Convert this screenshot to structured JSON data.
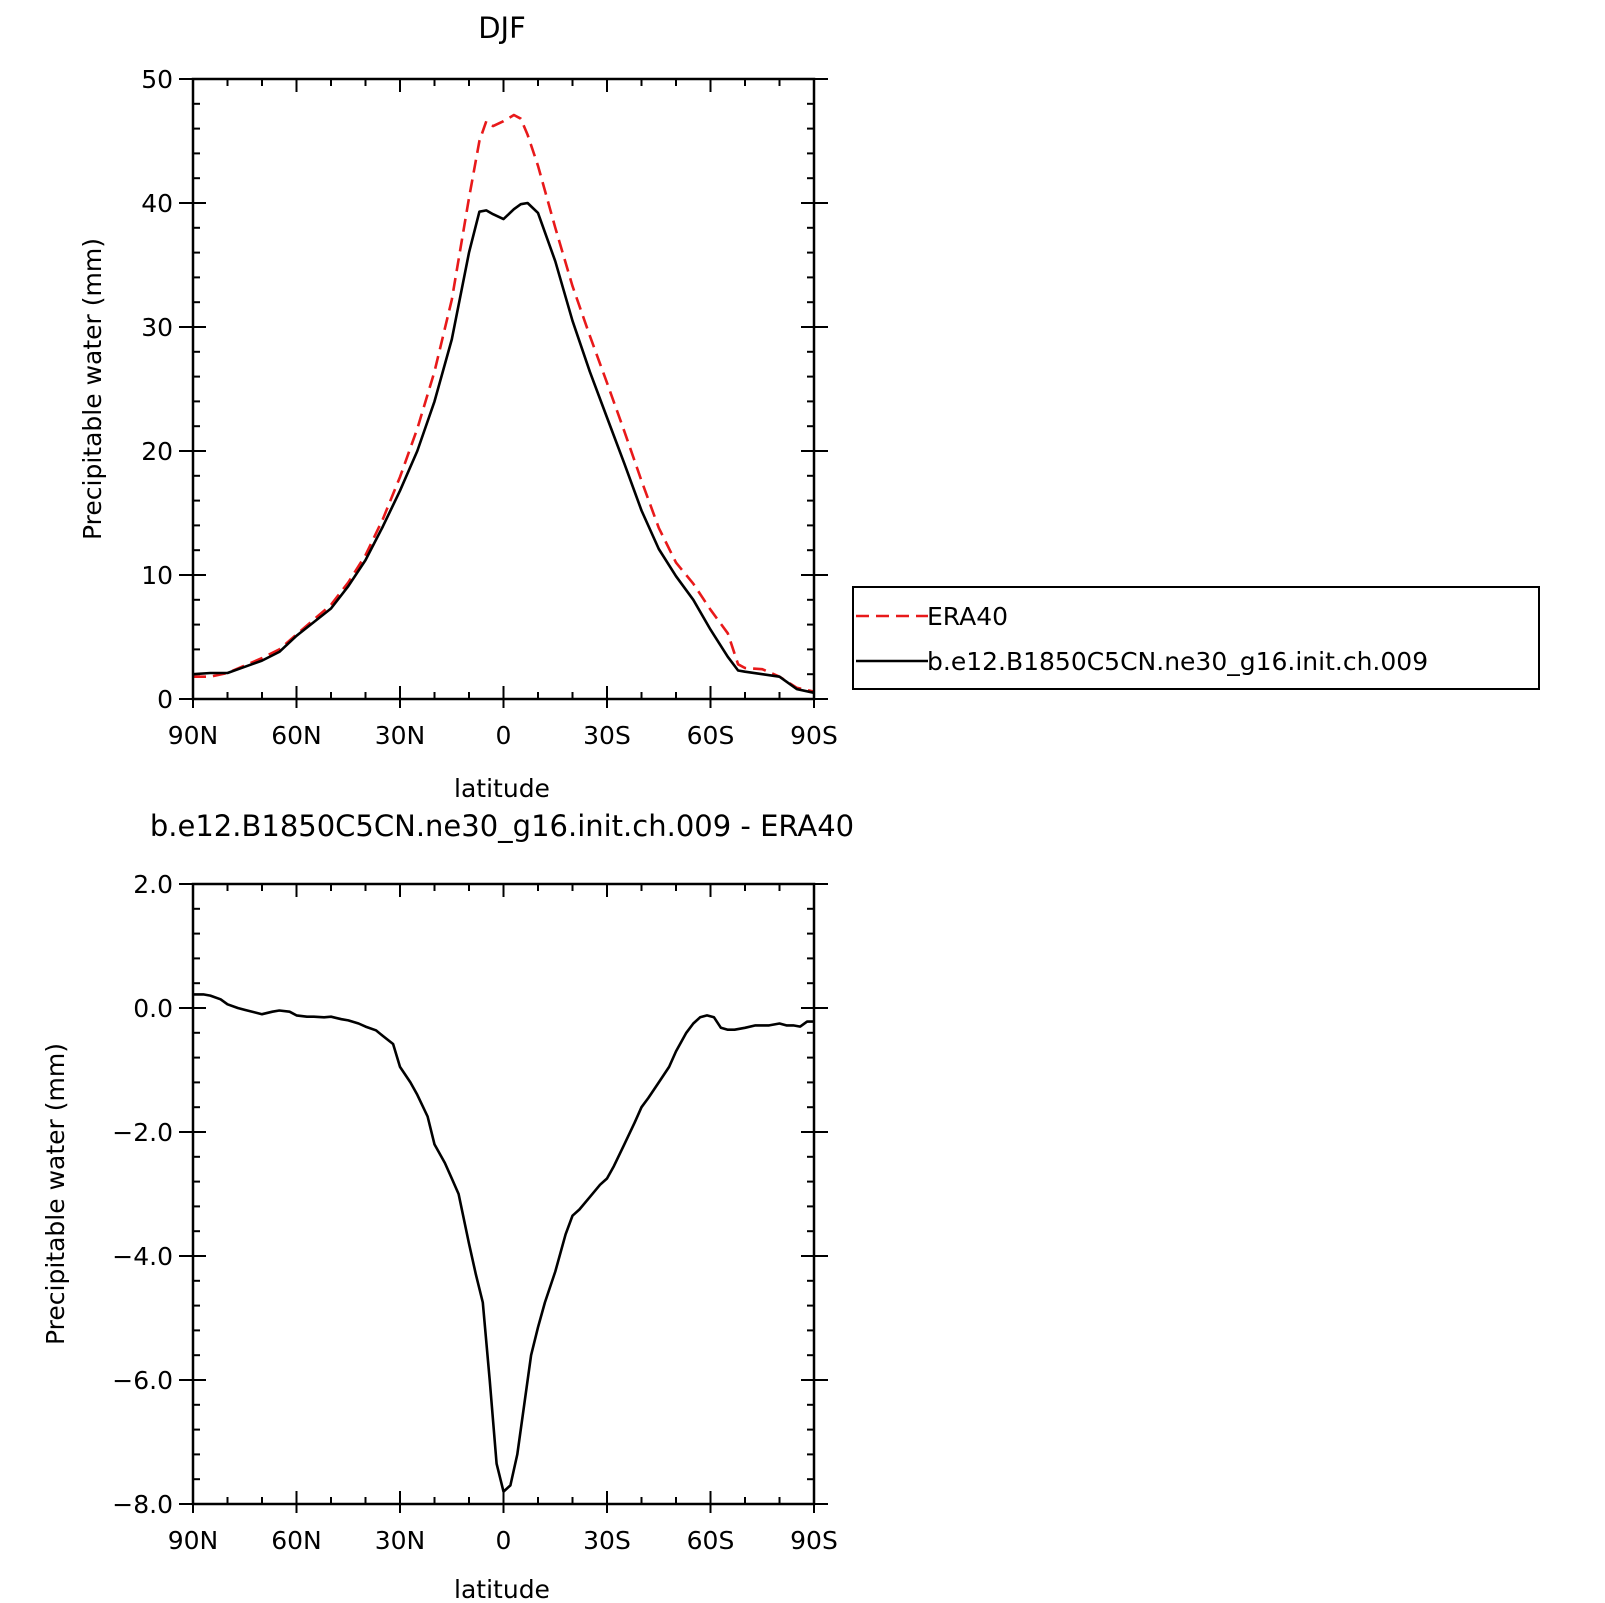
{
  "chart_data": [
    {
      "type": "line",
      "title": "DJF",
      "xlabel": "latitude",
      "ylabel": "Precipitable water (mm)",
      "xlim": [
        90,
        -90
      ],
      "ylim": [
        0,
        50
      ],
      "xticks": [
        {
          "value": 90,
          "label": "90N"
        },
        {
          "value": 60,
          "label": "60N"
        },
        {
          "value": 30,
          "label": "30N"
        },
        {
          "value": 0,
          "label": "0"
        },
        {
          "value": -30,
          "label": "30S"
        },
        {
          "value": -60,
          "label": "60S"
        },
        {
          "value": -90,
          "label": "90S"
        }
      ],
      "yticks": [
        {
          "value": 0,
          "label": "0"
        },
        {
          "value": 10,
          "label": "10"
        },
        {
          "value": 20,
          "label": "20"
        },
        {
          "value": 30,
          "label": "30"
        },
        {
          "value": 40,
          "label": "40"
        },
        {
          "value": 50,
          "label": "50"
        }
      ],
      "legend_position": "right",
      "series": [
        {
          "name": "ERA40",
          "color": "#e8191a",
          "dash": "dashed",
          "x": [
            90,
            85,
            80,
            75,
            70,
            65,
            60,
            55,
            50,
            45,
            40,
            35,
            30,
            25,
            20,
            15,
            10,
            7,
            5,
            3,
            0,
            -3,
            -5,
            -7,
            -10,
            -15,
            -20,
            -25,
            -30,
            -35,
            -40,
            -45,
            -50,
            -55,
            -60,
            -65,
            -68,
            -70,
            -75,
            -80,
            -85,
            -90
          ],
          "y": [
            1.8,
            1.8,
            2.1,
            2.7,
            3.3,
            4.0,
            5.2,
            6.4,
            7.6,
            9.4,
            11.6,
            14.5,
            17.9,
            21.8,
            26.4,
            32.2,
            40.4,
            45.0,
            46.6,
            46.2,
            46.6,
            47.1,
            46.8,
            45.5,
            43.0,
            38.0,
            33.3,
            29.3,
            25.5,
            21.6,
            17.6,
            13.8,
            11.0,
            9.3,
            7.2,
            5.3,
            2.8,
            2.5,
            2.4,
            1.8,
            0.9,
            0.6
          ]
        },
        {
          "name": "b.e12.B1850C5CN.ne30_g16.init.ch.009",
          "color": "#000000",
          "dash": "solid",
          "x": [
            90,
            85,
            80,
            75,
            70,
            65,
            60,
            55,
            50,
            45,
            40,
            35,
            30,
            25,
            20,
            15,
            10,
            7,
            5,
            3,
            0,
            -3,
            -5,
            -7,
            -10,
            -15,
            -20,
            -25,
            -30,
            -35,
            -40,
            -45,
            -50,
            -55,
            -60,
            -65,
            -68,
            -70,
            -75,
            -80,
            -85,
            -90
          ],
          "y": [
            2.0,
            2.1,
            2.1,
            2.6,
            3.1,
            3.8,
            5.1,
            6.2,
            7.3,
            9.1,
            11.2,
            13.9,
            16.8,
            20.0,
            24.0,
            29.0,
            36.0,
            39.3,
            39.4,
            39.1,
            38.7,
            39.5,
            39.9,
            40.0,
            39.2,
            35.3,
            30.5,
            26.4,
            22.7,
            19.0,
            15.2,
            12.1,
            9.9,
            8.0,
            5.6,
            3.4,
            2.3,
            2.2,
            2.0,
            1.8,
            0.8,
            0.5
          ]
        }
      ]
    },
    {
      "type": "line",
      "title": "b.e12.B1850C5CN.ne30_g16.init.ch.009 - ERA40",
      "xlabel": "latitude",
      "ylabel": "Precipitable water (mm)",
      "xlim": [
        90,
        -90
      ],
      "ylim": [
        -8,
        2
      ],
      "xticks": [
        {
          "value": 90,
          "label": "90N"
        },
        {
          "value": 60,
          "label": "60N"
        },
        {
          "value": 30,
          "label": "30N"
        },
        {
          "value": 0,
          "label": "0"
        },
        {
          "value": -30,
          "label": "30S"
        },
        {
          "value": -60,
          "label": "60S"
        },
        {
          "value": -90,
          "label": "90S"
        }
      ],
      "yticks": [
        {
          "value": 2,
          "label": "2.0"
        },
        {
          "value": 0,
          "label": "0.0"
        },
        {
          "value": -2,
          "label": "-2.0"
        },
        {
          "value": -4,
          "label": "-4.0"
        },
        {
          "value": -6,
          "label": "-6.0"
        },
        {
          "value": -8,
          "label": "-8.0"
        }
      ],
      "series": [
        {
          "color": "#000000",
          "dash": "solid",
          "x": [
            90,
            87,
            85,
            82,
            80,
            77,
            75,
            70,
            67,
            65,
            62,
            60,
            57,
            55,
            52,
            50,
            47,
            45,
            42,
            40,
            37,
            35,
            32,
            30,
            27,
            25,
            22,
            20,
            17,
            15,
            13,
            10,
            8,
            6,
            4,
            2,
            0,
            -2,
            -4,
            -6,
            -8,
            -10,
            -12,
            -15,
            -18,
            -20,
            -22,
            -25,
            -28,
            -30,
            -32,
            -35,
            -38,
            -40,
            -42,
            -45,
            -48,
            -50,
            -53,
            -55,
            -57,
            -59,
            -61,
            -63,
            -65,
            -67,
            -70,
            -73,
            -75,
            -77,
            -80,
            -82,
            -84,
            -86,
            -88,
            -90
          ],
          "y": [
            0.22,
            0.22,
            0.2,
            0.14,
            0.06,
            0.0,
            -0.03,
            -0.1,
            -0.06,
            -0.04,
            -0.06,
            -0.12,
            -0.14,
            -0.14,
            -0.15,
            -0.14,
            -0.18,
            -0.2,
            -0.25,
            -0.3,
            -0.36,
            -0.45,
            -0.58,
            -0.95,
            -1.2,
            -1.4,
            -1.75,
            -2.2,
            -2.5,
            -2.75,
            -3.0,
            -3.8,
            -4.3,
            -4.75,
            -6.0,
            -7.35,
            -7.8,
            -7.7,
            -7.2,
            -6.4,
            -5.6,
            -5.15,
            -4.75,
            -4.25,
            -3.65,
            -3.35,
            -3.25,
            -3.05,
            -2.85,
            -2.75,
            -2.55,
            -2.2,
            -1.85,
            -1.6,
            -1.45,
            -1.2,
            -0.95,
            -0.7,
            -0.4,
            -0.25,
            -0.15,
            -0.12,
            -0.15,
            -0.32,
            -0.35,
            -0.35,
            -0.32,
            -0.28,
            -0.28,
            -0.28,
            -0.25,
            -0.28,
            -0.28,
            -0.3,
            -0.22,
            -0.22
          ]
        }
      ]
    }
  ],
  "legend": {
    "entries": [
      {
        "label": "ERA40",
        "color": "#e8191a",
        "dash": "dashed"
      },
      {
        "label": "b.e12.B1850C5CN.ne30_g16.init.ch.009",
        "color": "#000000",
        "dash": "solid"
      }
    ]
  }
}
